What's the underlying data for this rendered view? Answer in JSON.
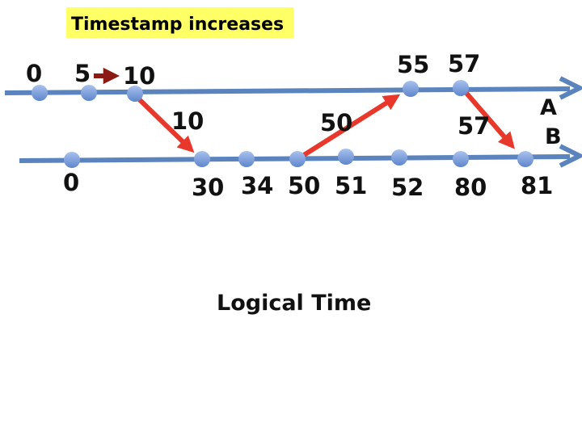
{
  "banner": {
    "text": "Timestamp increases",
    "color": "#FFFF66"
  },
  "caption": "Logical Time",
  "colors": {
    "timeline": "#5B83BD",
    "event": "#7F9FD9",
    "message": "#E8382B",
    "increment": "#8B1A14"
  },
  "processes": {
    "A": {
      "label": "A"
    },
    "B": {
      "label": "B"
    }
  },
  "events": {
    "A": [
      "0",
      "5",
      "10",
      "55",
      "57"
    ],
    "B": [
      "0",
      "30",
      "34",
      "50",
      "51",
      "52",
      "80",
      "81"
    ]
  },
  "messages": [
    {
      "label": "10",
      "from": "A 10",
      "to": "B 30"
    },
    {
      "label": "50",
      "from": "B 50",
      "to": "A 55"
    },
    {
      "label": "57",
      "from": "A 57",
      "to": "B 81"
    }
  ]
}
